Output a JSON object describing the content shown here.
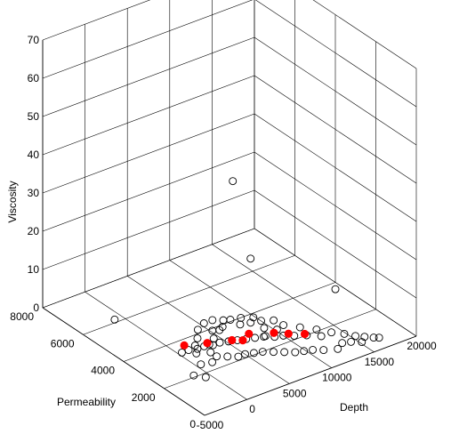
{
  "chart_data": {
    "type": "scatter",
    "title": "",
    "xlabel": "Depth",
    "ylabel": "Permeability",
    "zlabel": "Viscosity",
    "xlim": [
      -5000,
      20000
    ],
    "ylim": [
      0,
      8000
    ],
    "zlim": [
      0,
      70
    ],
    "x_ticks": [
      "-5000",
      "0",
      "5000",
      "10000",
      "15000",
      "20000"
    ],
    "y_ticks": [
      "0",
      "2000",
      "4000",
      "6000",
      "8000"
    ],
    "z_ticks": [
      "0",
      "10",
      "20",
      "30",
      "40",
      "50",
      "60",
      "70"
    ],
    "grid": true,
    "colors": {
      "open_marker": "#000000",
      "highlight": "#ff0000"
    },
    "series": [
      {
        "marker": "open-circle",
        "points": [
          [
            7600,
            3000,
            20
          ],
          [
            5500,
            3000,
            42
          ],
          [
            11400,
            400,
            18
          ],
          [
            -2000,
            5700,
            2.5
          ],
          [
            -1500,
            2000,
            0.5
          ],
          [
            -800,
            1700,
            0.5
          ],
          [
            300,
            2400,
            0.5
          ],
          [
            1400,
            2300,
            0.5
          ],
          [
            2400,
            2800,
            0.5
          ],
          [
            3200,
            3200,
            0.5
          ],
          [
            4200,
            3400,
            0.5
          ],
          [
            5000,
            3800,
            0.5
          ],
          [
            5600,
            3700,
            0.5
          ],
          [
            6200,
            3800,
            0.5
          ],
          [
            8400,
            2600,
            0.5
          ],
          [
            9200,
            3000,
            0.5
          ],
          [
            10000,
            2700,
            0.5
          ],
          [
            8800,
            3500,
            0.5
          ],
          [
            9600,
            3700,
            0.5
          ],
          [
            7800,
            3600,
            0.5
          ],
          [
            7000,
            4100,
            0.5
          ],
          [
            6200,
            4300,
            0.5
          ],
          [
            4000,
            4100,
            0.5
          ],
          [
            3000,
            3700,
            0.5
          ],
          [
            2000,
            3400,
            0.5
          ],
          [
            1200,
            3000,
            0.5
          ],
          [
            11000,
            2800,
            0.5
          ],
          [
            12000,
            2400,
            0.5
          ],
          [
            13000,
            2000,
            0.5
          ],
          [
            13800,
            1600,
            0.5
          ],
          [
            14600,
            1300,
            0.5
          ],
          [
            15200,
            1000,
            0.5
          ],
          [
            15800,
            800,
            0.5
          ],
          [
            16400,
            600,
            0.5
          ],
          [
            16800,
            500,
            0.5
          ],
          [
            12600,
            1600,
            0.5
          ],
          [
            11600,
            1900,
            0.5
          ],
          [
            10600,
            2100,
            0.5
          ],
          [
            9800,
            2300,
            0.5
          ],
          [
            9000,
            2400,
            0.5
          ],
          [
            8200,
            2600,
            0.5
          ],
          [
            7400,
            2700,
            0.5
          ],
          [
            6600,
            2800,
            0.5
          ],
          [
            5800,
            2900,
            0.5
          ],
          [
            5000,
            3000,
            0.5
          ],
          [
            4200,
            3100,
            0.5
          ],
          [
            3400,
            3100,
            0.5
          ],
          [
            2600,
            3200,
            0.5
          ],
          [
            1800,
            3200,
            0.5
          ],
          [
            1000,
            3300,
            0.5
          ],
          [
            200,
            3300,
            0.5
          ],
          [
            11200,
            900,
            0.5
          ],
          [
            10400,
            1100,
            0.5
          ],
          [
            9600,
            1200,
            0.5
          ],
          [
            8800,
            1300,
            0.5
          ],
          [
            8000,
            1500,
            0.5
          ],
          [
            7200,
            1700,
            0.5
          ],
          [
            6400,
            1900,
            0.5
          ],
          [
            5600,
            2000,
            0.5
          ],
          [
            4800,
            2100,
            0.5
          ],
          [
            4000,
            2100,
            0.5
          ],
          [
            3200,
            2300,
            0.5
          ],
          [
            2400,
            2500,
            0.5
          ],
          [
            13400,
            900,
            0.5
          ],
          [
            14200,
            800,
            0.5
          ],
          [
            15000,
            600,
            0.5
          ],
          [
            12400,
            700,
            0.5
          ],
          [
            10800,
            3200,
            0.5
          ],
          [
            9800,
            3400,
            0.5
          ],
          [
            8600,
            3900,
            0.5
          ],
          [
            7600,
            4000,
            0.5
          ],
          [
            5200,
            4300,
            0.5
          ]
        ]
      },
      {
        "marker": "filled-red",
        "points": [
          [
            11600,
            2000,
            0.5
          ],
          [
            9400,
            2600,
            0.5
          ],
          [
            7400,
            3000,
            0.5
          ],
          [
            5400,
            3000,
            0.5
          ],
          [
            3200,
            3300,
            0.5
          ],
          [
            1200,
            3600,
            0.5
          ],
          [
            10400,
            2300,
            0.5
          ],
          [
            6200,
            2800,
            0.5
          ]
        ]
      }
    ]
  }
}
